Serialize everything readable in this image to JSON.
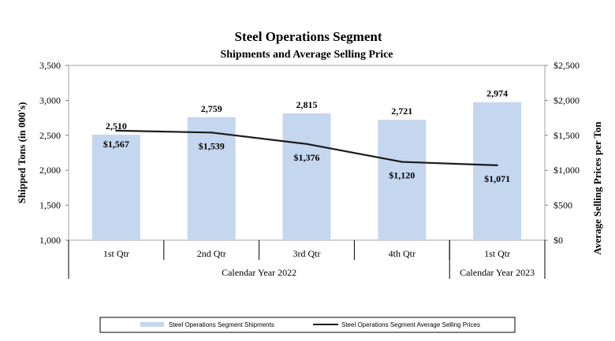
{
  "chart_data": {
    "type": "bar",
    "title": "Steel Operations Segment",
    "subtitle": "Shipments and Average Selling Price",
    "ylabel": "Shipped Tons (in 000's)",
    "y2label": "Average Selling Prices per Ton",
    "ylim": [
      1000,
      3500
    ],
    "yticks": [
      "1,000",
      "1,500",
      "2,000",
      "2,500",
      "3,000",
      "3,500"
    ],
    "ytick_values": [
      1000,
      1500,
      2000,
      2500,
      3000,
      3500
    ],
    "y2lim": [
      0,
      2500
    ],
    "y2ticks": [
      "$0",
      "$500",
      "$1,000",
      "$1,500",
      "$2,000",
      "$2,500"
    ],
    "y2tick_values": [
      0,
      500,
      1000,
      1500,
      2000,
      2500
    ],
    "categories": [
      "1st Qtr",
      "2nd Qtr",
      "3rd Qtr",
      "4th Qtr",
      "1st Qtr"
    ],
    "groups": [
      {
        "label": "Calendar Year 2022",
        "count": 4
      },
      {
        "label": "Calendar Year 2023",
        "count": 1
      }
    ],
    "series": [
      {
        "name": "Steel Operations Segment Shipments",
        "kind": "bar",
        "axis": "left",
        "color": "#c5d7ef",
        "values": [
          2510,
          2759,
          2815,
          2721,
          2974
        ],
        "labels": [
          "2,510",
          "2,759",
          "2,815",
          "2,721",
          "2,974"
        ]
      },
      {
        "name": "Steel Operations Segment Average Selling Prices",
        "kind": "line",
        "axis": "right",
        "color": "#1a1a1a",
        "values": [
          1567,
          1539,
          1376,
          1120,
          1071
        ],
        "labels": [
          "$1,567",
          "$1,539",
          "$1,376",
          "$1,120",
          "$1,071"
        ]
      }
    ],
    "grid": false,
    "legend_position": "bottom"
  }
}
